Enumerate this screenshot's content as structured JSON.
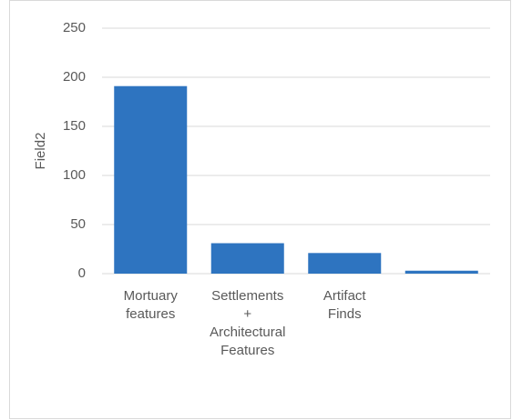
{
  "chart_data": {
    "type": "bar",
    "y_label": "Field2",
    "categories": [
      "Mortuary features",
      "Settlements + Architectural Features",
      "Artifact Finds",
      null
    ],
    "values": [
      191,
      31,
      21,
      3
    ],
    "color": "#2e74c0",
    "ylim": [
      0,
      250
    ],
    "yticks": [
      0,
      50,
      100,
      150,
      200,
      250
    ],
    "grid": true
  }
}
